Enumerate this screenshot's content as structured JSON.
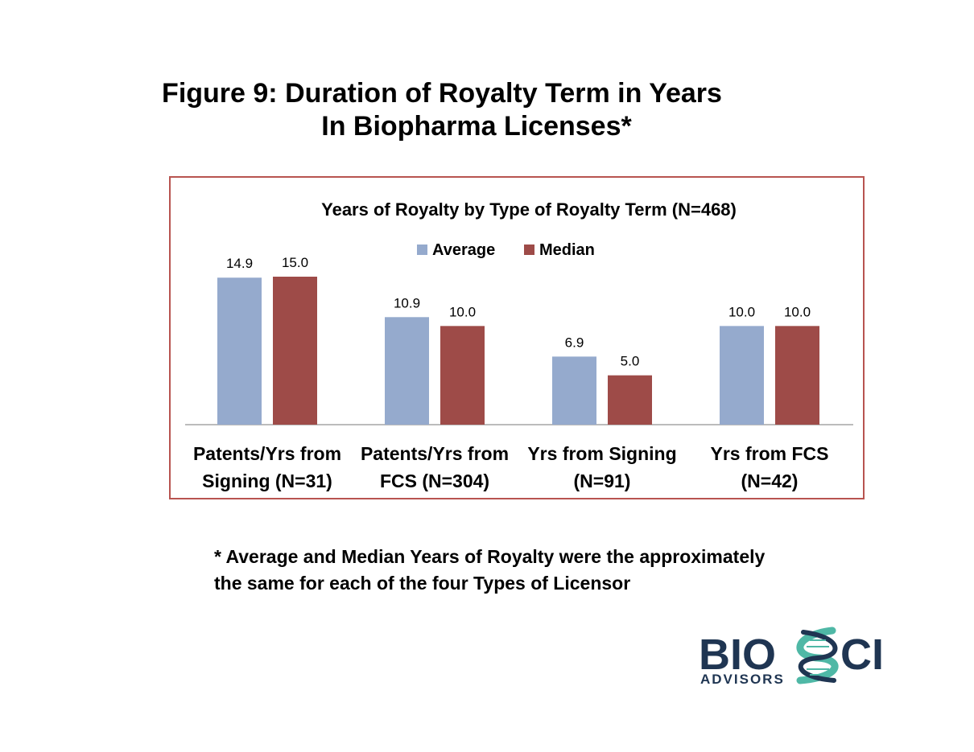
{
  "slide": {
    "title_line1": "Figure 9:  Duration of Royalty Term in Years",
    "title_line2": "In Biopharma Licenses*",
    "footnote_line1": "* Average and Median Years of Royalty were the approximately",
    "footnote_line2": "the same for each of the four Types of Licensor"
  },
  "logo": {
    "word_left": "BIO",
    "word_right": "CI",
    "subtitle": "ADVISORS",
    "colors": {
      "navy": "#1f3552",
      "teal": "#4fb8a6"
    }
  },
  "chart_data": {
    "type": "bar",
    "title": "Years of Royalty by Type of Royalty Term (N=468)",
    "categories": [
      [
        "Patents/Yrs from",
        "Signing (N=31)"
      ],
      [
        "Patents/Yrs from",
        "FCS (N=304)"
      ],
      [
        "Yrs from Signing",
        "(N=91)"
      ],
      [
        "Yrs from FCS",
        "(N=42)"
      ]
    ],
    "series": [
      {
        "name": "Average",
        "color": "#95aacd",
        "values": [
          14.9,
          10.9,
          6.9,
          10.0
        ],
        "labels": [
          "14.9",
          "10.9",
          "6.9",
          "10.0"
        ]
      },
      {
        "name": "Median",
        "color": "#9e4b48",
        "values": [
          15.0,
          10.0,
          5.0,
          10.0
        ],
        "labels": [
          "15.0",
          "10.0",
          "5.0",
          "10.0"
        ]
      }
    ],
    "ylim": [
      0,
      15
    ],
    "legend_position": "top",
    "grid": false,
    "xlabel": "",
    "ylabel": ""
  }
}
